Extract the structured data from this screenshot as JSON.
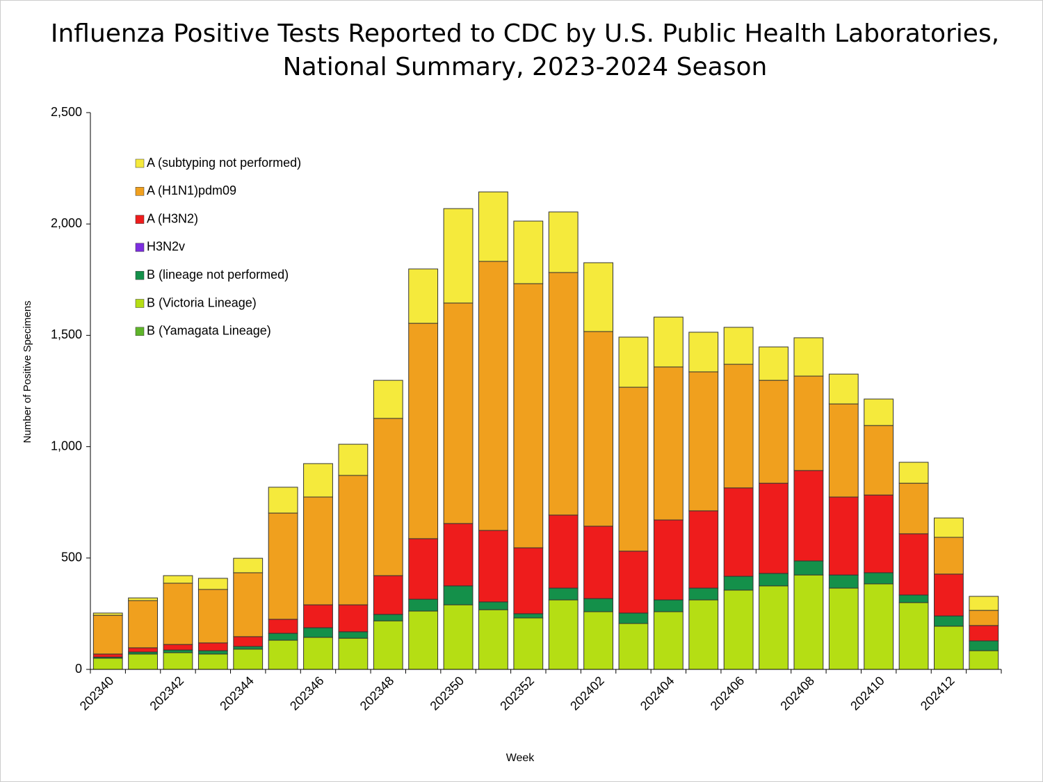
{
  "chart_data": {
    "type": "stacked_bar",
    "title": [
      "Influenza Positive Tests Reported to CDC by U.S. Public Health Laboratories,",
      "National Summary, 2023-2024 Season"
    ],
    "x_label": "Week",
    "y_label": "Number of Positive Specimens",
    "categories": [
      "202340",
      null,
      "202342",
      null,
      "202344",
      null,
      "202346",
      null,
      "202348",
      null,
      "202350",
      null,
      "202352",
      null,
      "202402",
      null,
      "202404",
      null,
      "202406",
      null,
      "202408",
      null,
      "202410",
      null,
      "202412",
      null
    ],
    "series": [
      {
        "name": "A (subtyping not performed)",
        "color": "#f5ea3c",
        "values": [
          10,
          12,
          34,
          50,
          65,
          116,
          150,
          140,
          171,
          244,
          424,
          312,
          281,
          272,
          309,
          225,
          224,
          178,
          166,
          150,
          172,
          134,
          119,
          94,
          87,
          63
        ]
      },
      {
        "name": "A (H1N1)pdm09",
        "color": "#f0a01e",
        "values": [
          174,
          212,
          275,
          240,
          287,
          477,
          484,
          581,
          706,
          967,
          990,
          1208,
          1186,
          1089,
          874,
          736,
          687,
          624,
          555,
          462,
          424,
          418,
          312,
          227,
          165,
          68
        ]
      },
      {
        "name": "A (H3N2)",
        "color": "#ee1c1c",
        "values": [
          14,
          19,
          25,
          35,
          44,
          63,
          103,
          121,
          174,
          272,
          280,
          321,
          296,
          328,
          325,
          278,
          359,
          347,
          397,
          405,
          406,
          350,
          349,
          275,
          188,
          69
        ]
      },
      {
        "name": "H3N2v",
        "color": "#7d2ee0",
        "values": [
          0,
          0,
          0,
          0,
          0,
          0,
          0,
          0,
          0,
          0,
          0,
          0,
          0,
          0,
          0,
          0,
          0,
          0,
          0,
          0,
          0,
          0,
          0,
          0,
          0,
          0
        ]
      },
      {
        "name": "B (lineage not performed)",
        "color": "#14904a",
        "values": [
          5,
          9,
          12,
          15,
          12,
          31,
          43,
          29,
          29,
          53,
          85,
          35,
          19,
          53,
          59,
          47,
          53,
          53,
          62,
          56,
          63,
          59,
          50,
          34,
          46,
          44
        ]
      },
      {
        "name": "B (Victoria Lineage)",
        "color": "#b5de14",
        "values": [
          50,
          69,
          75,
          69,
          91,
          131,
          144,
          140,
          218,
          262,
          290,
          268,
          231,
          312,
          259,
          206,
          259,
          312,
          356,
          375,
          424,
          365,
          384,
          300,
          194,
          84
        ]
      },
      {
        "name": "B (Yamagata Lineage)",
        "color": "#5fb52a",
        "values": [
          0,
          0,
          0,
          0,
          0,
          0,
          0,
          0,
          0,
          0,
          0,
          0,
          0,
          0,
          0,
          0,
          0,
          0,
          0,
          0,
          0,
          0,
          0,
          0,
          0,
          0
        ]
      }
    ],
    "ylim": [
      0,
      2500
    ],
    "yticks": [
      0,
      500,
      {
        "value": 1000,
        "label": "1,000"
      },
      {
        "value": 1500,
        "label": "1,500"
      },
      {
        "value": 2000,
        "label": "2,000"
      },
      {
        "value": 2500,
        "label": "2,500"
      }
    ],
    "grid": false,
    "legend": "upper left"
  }
}
